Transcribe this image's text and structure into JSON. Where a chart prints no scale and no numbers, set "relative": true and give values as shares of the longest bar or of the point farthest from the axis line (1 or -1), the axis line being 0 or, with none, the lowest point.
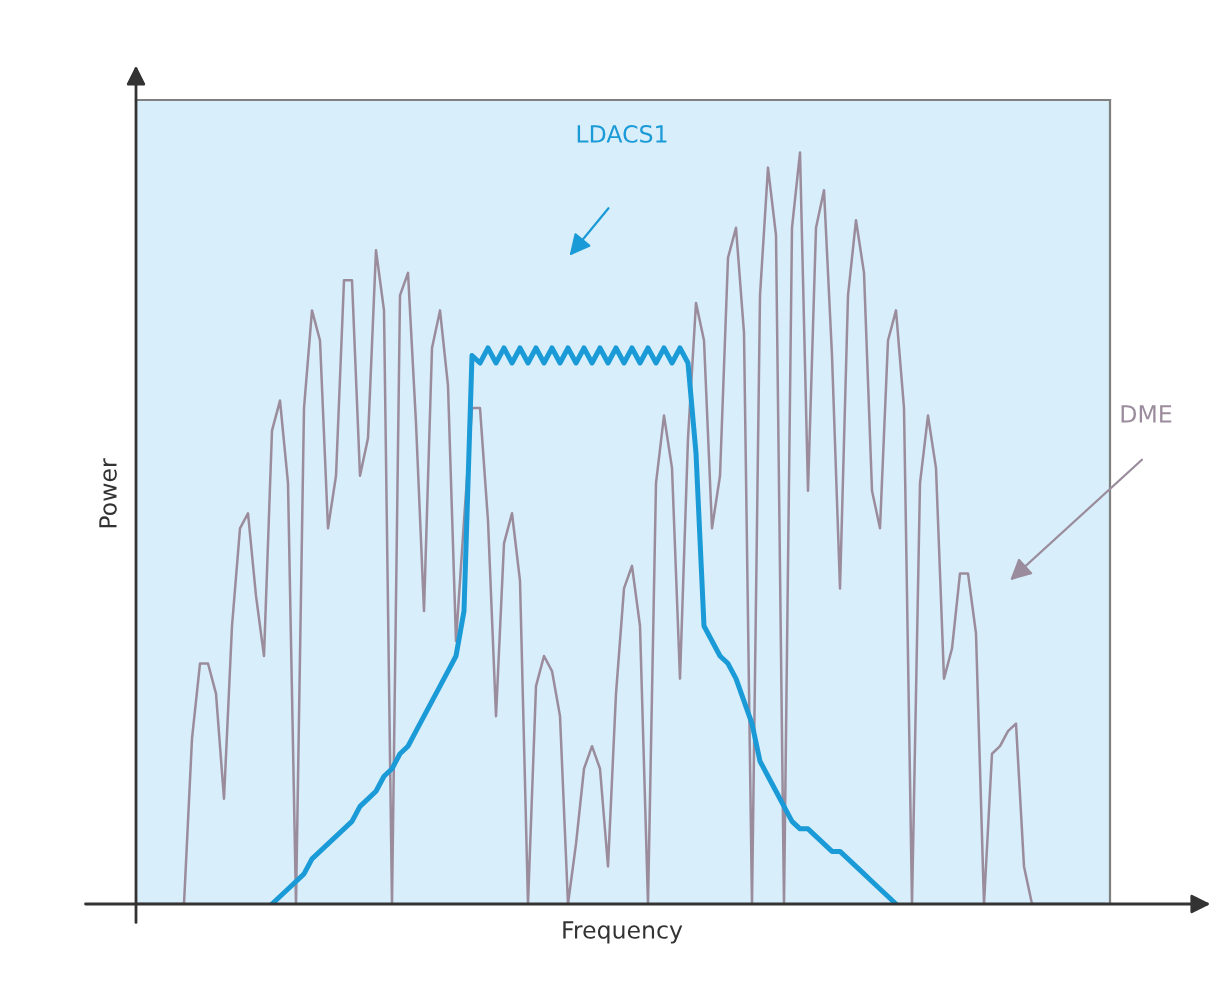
{
  "chart_data": {
    "type": "line",
    "relative": true,
    "xlabel": "Frequency",
    "ylabel": "Power",
    "legend": false,
    "grid": false,
    "marker": "none",
    "line_style": "solid",
    "categories": [
      null,
      null,
      null,
      null,
      null,
      null,
      null,
      null,
      null,
      null,
      null,
      null,
      null,
      null,
      null,
      null,
      null,
      null,
      null,
      null,
      null,
      null,
      null,
      null,
      null,
      null,
      null,
      null,
      null,
      null,
      null,
      null,
      null,
      null,
      null,
      null,
      null,
      null,
      null,
      null,
      null,
      null,
      null,
      null,
      null,
      null,
      null,
      null,
      null,
      null,
      null,
      null,
      null,
      null,
      null,
      null,
      null,
      null,
      null,
      null,
      null,
      null,
      null,
      null,
      null,
      null,
      null,
      null,
      null,
      null,
      null,
      null,
      null,
      null,
      null,
      null,
      null,
      null,
      null,
      null,
      null,
      null,
      null,
      null,
      null,
      null,
      null,
      null,
      null,
      null,
      null,
      null,
      null,
      null,
      null,
      null,
      null,
      null,
      null,
      null,
      null,
      null,
      null,
      null,
      null,
      null,
      null,
      null,
      null,
      null,
      null,
      null,
      null,
      null,
      null,
      null,
      null,
      null,
      null,
      null,
      null,
      null
    ],
    "series": [
      {
        "name": "DME",
        "color": "#9a8c9c",
        "values": [
          0,
          0,
          0,
          0,
          0,
          0,
          0,
          0.22,
          0.32,
          0.32,
          0.28,
          0.14,
          0.37,
          0.5,
          0.52,
          0.41,
          0.33,
          0.63,
          0.67,
          0.56,
          0,
          0.66,
          0.79,
          0.75,
          0.5,
          0.57,
          0.83,
          0.83,
          0.57,
          0.62,
          0.87,
          0.79,
          0,
          0.81,
          0.84,
          0.64,
          0.39,
          0.74,
          0.79,
          0.69,
          0.35,
          0.51,
          0.66,
          0.66,
          0.51,
          0.25,
          0.48,
          0.52,
          0.43,
          0,
          0.29,
          0.33,
          0.31,
          0.25,
          0,
          0.08,
          0.18,
          0.21,
          0.18,
          0.05,
          0.28,
          0.42,
          0.45,
          0.37,
          0,
          0.56,
          0.65,
          0.58,
          0.3,
          0.62,
          0.8,
          0.75,
          0.5,
          0.57,
          0.86,
          0.9,
          0.76,
          0,
          0.81,
          0.98,
          0.89,
          0,
          0.9,
          1.0,
          0.55,
          0.9,
          0.95,
          0.73,
          0.42,
          0.81,
          0.91,
          0.84,
          0.55,
          0.5,
          0.75,
          0.79,
          0.66,
          0,
          0.56,
          0.65,
          0.58,
          0.3,
          0.34,
          0.44,
          0.44,
          0.36,
          0,
          0.2,
          0.21,
          0.23,
          0.24,
          0.05,
          0,
          0,
          0,
          0,
          0,
          0,
          0,
          0,
          0,
          0
        ]
      },
      {
        "name": "LDACS1",
        "color": "#1a9ad6",
        "values": [
          null,
          null,
          null,
          null,
          null,
          null,
          null,
          null,
          null,
          null,
          null,
          null,
          null,
          null,
          null,
          null,
          null,
          0,
          0.01,
          0.02,
          0.03,
          0.04,
          0.06,
          0.07,
          0.08,
          0.09,
          0.1,
          0.11,
          0.13,
          0.14,
          0.15,
          0.17,
          0.18,
          0.2,
          0.21,
          0.23,
          0.25,
          0.27,
          0.29,
          0.31,
          0.33,
          0.39,
          0.73,
          0.72,
          0.74,
          0.72,
          0.74,
          0.72,
          0.74,
          0.72,
          0.74,
          0.72,
          0.74,
          0.72,
          0.74,
          0.72,
          0.74,
          0.72,
          0.74,
          0.72,
          0.74,
          0.72,
          0.74,
          0.72,
          0.74,
          0.72,
          0.74,
          0.72,
          0.74,
          0.72,
          0.6,
          0.37,
          0.35,
          0.33,
          0.32,
          0.3,
          0.27,
          0.24,
          0.19,
          0.17,
          0.15,
          0.13,
          0.11,
          0.1,
          0.1,
          0.09,
          0.08,
          0.07,
          0.07,
          0.06,
          0.05,
          0.04,
          0.03,
          0.02,
          0.01,
          0,
          null,
          null,
          null,
          null,
          null,
          null,
          null,
          null,
          null,
          null,
          null,
          null,
          null,
          null,
          null,
          null,
          null,
          null,
          null,
          null,
          null,
          null,
          null,
          null,
          null,
          null
        ]
      }
    ]
  }
}
